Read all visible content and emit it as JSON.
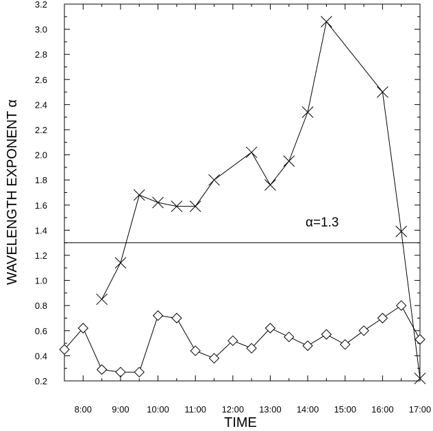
{
  "chart_data": {
    "type": "line",
    "xlabel": "TIME",
    "ylabel": "WAVELENGTH EXPONENT α",
    "xlim": [
      7.5,
      17.0
    ],
    "ylim": [
      0.2,
      3.2
    ],
    "x_ticks": [
      {
        "value": 8,
        "label": "8:00"
      },
      {
        "value": 9,
        "label": "9:00"
      },
      {
        "value": 10,
        "label": "10:00"
      },
      {
        "value": 11,
        "label": "11:00"
      },
      {
        "value": 12,
        "label": "12:00"
      },
      {
        "value": 13,
        "label": "13:00"
      },
      {
        "value": 14,
        "label": "14:00"
      },
      {
        "value": 15,
        "label": "15:00"
      },
      {
        "value": 16,
        "label": "16:00"
      },
      {
        "value": 17,
        "label": "17:00"
      }
    ],
    "y_ticks": [
      0.2,
      0.4,
      0.6,
      0.8,
      1.0,
      1.2,
      1.4,
      1.6,
      1.8,
      2.0,
      2.2,
      2.4,
      2.6,
      2.8,
      3.0,
      3.2
    ],
    "y_tick_labels": [
      "0.2",
      "0.4",
      "0.6",
      "0.8",
      "1.0",
      "1.2",
      "1.4",
      "1.6",
      "1.8",
      "2.0",
      "2.2",
      "2.4",
      "2.6",
      "2.8",
      "3.0",
      "3.2"
    ],
    "reference_line": {
      "y": 1.3,
      "label": "α=1.3"
    },
    "grid": false,
    "series": [
      {
        "marker": "x",
        "color": "#000000",
        "x": [
          8.5,
          9.0,
          9.5,
          10.0,
          10.5,
          11.0,
          11.5,
          12.5,
          13.0,
          13.5,
          14.0,
          14.5,
          16.0,
          16.5,
          17.0
        ],
        "y": [
          0.85,
          1.14,
          1.68,
          1.62,
          1.59,
          1.59,
          1.8,
          2.02,
          1.76,
          1.95,
          2.34,
          3.06,
          2.5,
          1.39,
          0.22
        ]
      },
      {
        "marker": "diamond",
        "color": "#000000",
        "x": [
          7.5,
          8.0,
          8.5,
          9.0,
          9.5,
          10.0,
          10.5,
          11.0,
          11.5,
          12.0,
          12.5,
          13.0,
          13.5,
          14.0,
          14.5,
          15.0,
          15.5,
          16.0,
          16.5,
          17.0
        ],
        "y": [
          0.45,
          0.62,
          0.29,
          0.27,
          0.27,
          0.72,
          0.7,
          0.44,
          0.38,
          0.52,
          0.46,
          0.62,
          0.55,
          0.48,
          0.57,
          0.49,
          0.6,
          0.7,
          0.8,
          0.53
        ]
      }
    ]
  }
}
